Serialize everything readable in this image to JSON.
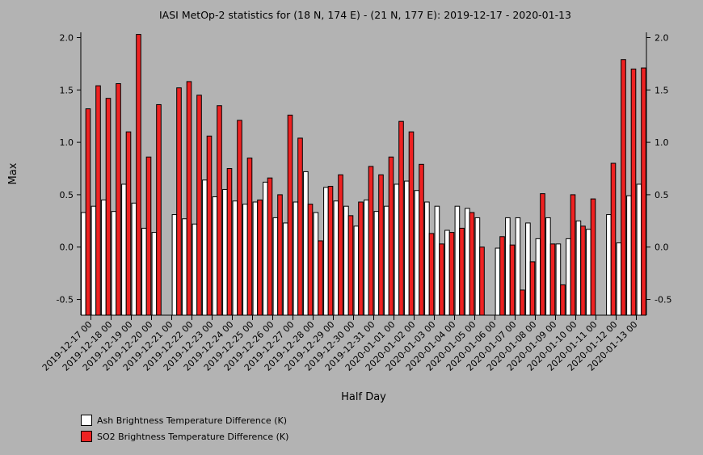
{
  "chart_data": {
    "type": "bar",
    "title": "IASI MetOp-2 statistics for (18 N, 174 E) - (21 N, 177 E): 2019-12-17 - 2020-01-13",
    "xlabel": "Half Day",
    "ylabel": "Max",
    "ylim": [
      -0.65,
      2.05
    ],
    "yticks": [
      "-0.5",
      "0.0",
      "0.5",
      "1.0",
      "1.5",
      "2.0"
    ],
    "categories": [
      "2019-12-17 00",
      "2019-12-17 12",
      "2019-12-18 00",
      "2019-12-18 12",
      "2019-12-19 00",
      "2019-12-19 12",
      "2019-12-20 00",
      "2019-12-20 12",
      "2019-12-21 00",
      "2019-12-21 12",
      "2019-12-22 00",
      "2019-12-22 12",
      "2019-12-23 00",
      "2019-12-23 12",
      "2019-12-24 00",
      "2019-12-24 12",
      "2019-12-25 00",
      "2019-12-25 12",
      "2019-12-26 00",
      "2019-12-26 12",
      "2019-12-27 00",
      "2019-12-27 12",
      "2019-12-28 00",
      "2019-12-28 12",
      "2019-12-29 00",
      "2019-12-29 12",
      "2019-12-30 00",
      "2019-12-30 12",
      "2019-12-31 00",
      "2019-12-31 12",
      "2020-01-01 00",
      "2020-01-01 12",
      "2020-01-02 00",
      "2020-01-02 12",
      "2020-01-03 00",
      "2020-01-03 12",
      "2020-01-04 00",
      "2020-01-04 12",
      "2020-01-05 00",
      "2020-01-05 12",
      "2020-01-06 00",
      "2020-01-06 12",
      "2020-01-07 00",
      "2020-01-07 12",
      "2020-01-08 00",
      "2020-01-08 12",
      "2020-01-09 00",
      "2020-01-09 12",
      "2020-01-10 00",
      "2020-01-10 12",
      "2020-01-11 00",
      "2020-01-11 12",
      "2020-01-12 00",
      "2020-01-12 12",
      "2020-01-13 00",
      "2020-01-13 12"
    ],
    "tick_labels": [
      "2019-12-17 00",
      "2019-12-18 00",
      "2019-12-19 00",
      "2019-12-20 00",
      "2019-12-21 00",
      "2019-12-22 00",
      "2019-12-23 00",
      "2019-12-24 00",
      "2019-12-25 00",
      "2019-12-26 00",
      "2019-12-27 00",
      "2019-12-28 00",
      "2019-12-29 00",
      "2019-12-30 00",
      "2019-12-31 00",
      "2020-01-01 00",
      "2020-01-02 00",
      "2020-01-03 00",
      "2020-01-04 00",
      "2020-01-05 00",
      "2020-01-06 00",
      "2020-01-07 00",
      "2020-01-08 00",
      "2020-01-09 00",
      "2020-01-10 00",
      "2020-01-11 00",
      "2020-01-12 00",
      "2020-01-13 00"
    ],
    "series": [
      {
        "name": "Ash Brightness Temperature Difference (K)",
        "color": "#ffffff",
        "values": [
          0.33,
          0.39,
          0.45,
          0.34,
          0.6,
          0.42,
          0.18,
          0.14,
          null,
          0.31,
          0.27,
          0.22,
          0.64,
          0.48,
          0.55,
          0.44,
          0.41,
          0.43,
          0.62,
          0.28,
          0.23,
          0.43,
          0.72,
          0.33,
          0.57,
          0.44,
          0.39,
          0.2,
          0.45,
          0.34,
          0.39,
          0.6,
          0.63,
          0.54,
          0.43,
          0.39,
          0.16,
          0.39,
          0.37,
          0.28,
          null,
          -0.01,
          0.28,
          0.28,
          0.23,
          0.08,
          0.28,
          0.03,
          0.08,
          0.25,
          0.17,
          null,
          0.31,
          0.04,
          0.49,
          0.6
        ]
      },
      {
        "name": "SO2 Brightness Temperature Difference (K)",
        "color": "#ee2222",
        "values": [
          1.32,
          1.54,
          1.42,
          1.56,
          1.1,
          2.03,
          0.86,
          1.36,
          null,
          1.52,
          1.58,
          1.45,
          1.06,
          1.35,
          0.75,
          1.21,
          0.85,
          0.45,
          0.66,
          0.5,
          1.26,
          1.04,
          0.41,
          0.06,
          0.58,
          0.69,
          0.3,
          0.43,
          0.77,
          0.69,
          0.86,
          1.2,
          1.1,
          0.79,
          0.13,
          0.03,
          0.14,
          0.18,
          0.33,
          0.0,
          null,
          0.1,
          0.02,
          -0.41,
          -0.14,
          0.51,
          0.03,
          -0.36,
          0.5,
          0.2,
          0.46,
          null,
          0.8,
          1.79,
          1.7,
          1.71
        ]
      }
    ],
    "legend_position": "bottom-left",
    "grid": false
  }
}
